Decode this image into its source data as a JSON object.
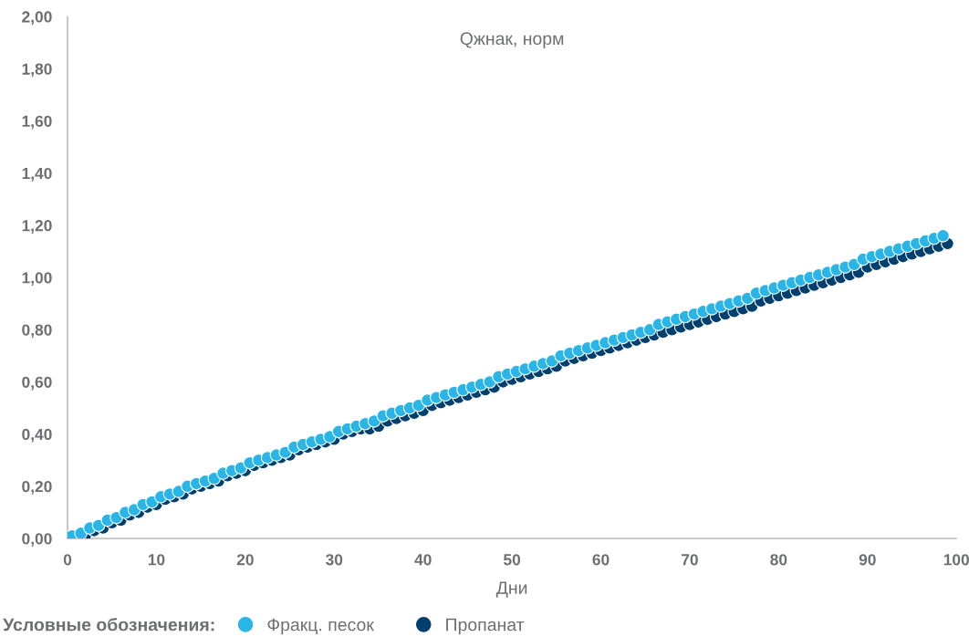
{
  "chart_data": {
    "type": "scatter",
    "title": "Qжнак, норм",
    "xlabel": "Дни",
    "legend_title": "Условные обозначения:",
    "legend": "bottom",
    "marker": "circle",
    "grid": false,
    "xlim": [
      0,
      100
    ],
    "xticks": [
      0,
      10,
      20,
      30,
      40,
      50,
      60,
      70,
      80,
      90,
      100
    ],
    "ylim": [
      0,
      2
    ],
    "yticks": [
      {
        "value": 0,
        "label": "0,00"
      },
      {
        "value": 0.2,
        "label": "0,20"
      },
      {
        "value": 0.4,
        "label": "0,40"
      },
      {
        "value": 0.6,
        "label": "0,60"
      },
      {
        "value": 0.8,
        "label": "0,80"
      },
      {
        "value": 1.0,
        "label": "1,00"
      },
      {
        "value": 1.2,
        "label": "1,20"
      },
      {
        "value": 1.4,
        "label": "1,40"
      },
      {
        "value": 1.6,
        "label": "1,60"
      },
      {
        "value": 1.8,
        "label": "1,80"
      },
      {
        "value": 2.0,
        "label": "2,00"
      }
    ],
    "series": [
      {
        "name": "Фракц. песок",
        "color": "#29b5e8",
        "x": [
          0.5,
          1.5,
          2.5,
          3.5,
          4.5,
          5.5,
          6.5,
          7.5,
          8.5,
          9.5,
          10.5,
          11.5,
          12.5,
          13.5,
          14.5,
          15.5,
          16.5,
          17.5,
          18.5,
          19.5,
          20.5,
          21.5,
          22.5,
          23.5,
          24.5,
          25.5,
          26.5,
          27.5,
          28.5,
          29.5,
          30.5,
          31.5,
          32.5,
          33.5,
          34.5,
          35.5,
          36.5,
          37.5,
          38.5,
          39.5,
          40.5,
          41.5,
          42.5,
          43.5,
          44.5,
          45.5,
          46.5,
          47.5,
          48.5,
          49.5,
          50.5,
          51.5,
          52.5,
          53.5,
          54.5,
          55.5,
          56.5,
          57.5,
          58.5,
          59.5,
          60.5,
          61.5,
          62.5,
          63.5,
          64.5,
          65.5,
          66.5,
          67.5,
          68.5,
          69.5,
          70.5,
          71.5,
          72.5,
          73.5,
          74.5,
          75.5,
          76.5,
          77.5,
          78.5,
          79.5,
          80.5,
          81.5,
          82.5,
          83.5,
          84.5,
          85.5,
          86.5,
          87.5,
          88.5,
          89.5,
          90.5,
          91.5,
          92.5,
          93.5,
          94.5,
          95.5,
          96.5,
          97.5,
          98.5
        ],
        "values": [
          0.01,
          0.02,
          0.04,
          0.05,
          0.07,
          0.08,
          0.1,
          0.11,
          0.13,
          0.14,
          0.16,
          0.17,
          0.18,
          0.2,
          0.21,
          0.22,
          0.23,
          0.25,
          0.26,
          0.27,
          0.29,
          0.3,
          0.31,
          0.32,
          0.33,
          0.35,
          0.36,
          0.37,
          0.38,
          0.39,
          0.41,
          0.42,
          0.43,
          0.44,
          0.45,
          0.47,
          0.48,
          0.49,
          0.5,
          0.51,
          0.53,
          0.54,
          0.55,
          0.56,
          0.57,
          0.58,
          0.59,
          0.6,
          0.62,
          0.63,
          0.64,
          0.65,
          0.66,
          0.67,
          0.68,
          0.7,
          0.71,
          0.72,
          0.73,
          0.74,
          0.75,
          0.76,
          0.77,
          0.78,
          0.79,
          0.8,
          0.82,
          0.83,
          0.84,
          0.85,
          0.86,
          0.87,
          0.88,
          0.89,
          0.9,
          0.91,
          0.92,
          0.94,
          0.95,
          0.96,
          0.97,
          0.98,
          0.99,
          1.0,
          1.01,
          1.02,
          1.03,
          1.04,
          1.05,
          1.07,
          1.08,
          1.09,
          1.1,
          1.11,
          1.12,
          1.13,
          1.14,
          1.15,
          1.16
        ]
      },
      {
        "name": "Пропанат",
        "color": "#003f6e",
        "x": [
          2,
          3,
          4,
          5,
          6,
          7,
          8,
          9,
          10,
          11,
          12,
          13,
          14,
          15,
          16,
          17,
          18,
          19,
          20,
          21,
          22,
          23,
          24,
          25,
          26,
          27,
          28,
          29,
          30,
          31,
          32,
          33,
          34,
          35,
          36,
          37,
          38,
          39,
          40,
          41,
          42,
          43,
          44,
          45,
          46,
          47,
          48,
          49,
          50,
          51,
          52,
          53,
          54,
          55,
          56,
          57,
          58,
          59,
          60,
          61,
          62,
          63,
          64,
          65,
          66,
          67,
          68,
          69,
          70,
          71,
          72,
          73,
          74,
          75,
          76,
          77,
          78,
          79,
          80,
          81,
          82,
          83,
          84,
          85,
          86,
          87,
          88,
          89,
          90,
          91,
          92,
          93,
          94,
          95,
          96,
          97,
          98,
          99
        ],
        "values": [
          0.01,
          0.03,
          0.04,
          0.06,
          0.07,
          0.09,
          0.1,
          0.12,
          0.13,
          0.15,
          0.16,
          0.17,
          0.19,
          0.2,
          0.21,
          0.22,
          0.24,
          0.25,
          0.26,
          0.28,
          0.29,
          0.3,
          0.31,
          0.32,
          0.34,
          0.35,
          0.36,
          0.37,
          0.38,
          0.4,
          0.41,
          0.42,
          0.42,
          0.43,
          0.45,
          0.46,
          0.47,
          0.48,
          0.49,
          0.51,
          0.52,
          0.53,
          0.54,
          0.55,
          0.56,
          0.57,
          0.58,
          0.6,
          0.61,
          0.62,
          0.63,
          0.64,
          0.65,
          0.66,
          0.68,
          0.69,
          0.7,
          0.71,
          0.72,
          0.73,
          0.74,
          0.75,
          0.76,
          0.77,
          0.78,
          0.79,
          0.8,
          0.81,
          0.82,
          0.83,
          0.84,
          0.85,
          0.86,
          0.87,
          0.88,
          0.89,
          0.91,
          0.92,
          0.93,
          0.94,
          0.95,
          0.96,
          0.97,
          0.98,
          0.99,
          1.0,
          1.01,
          1.02,
          1.04,
          1.05,
          1.06,
          1.07,
          1.08,
          1.09,
          1.1,
          1.11,
          1.12,
          1.13
        ]
      }
    ]
  }
}
